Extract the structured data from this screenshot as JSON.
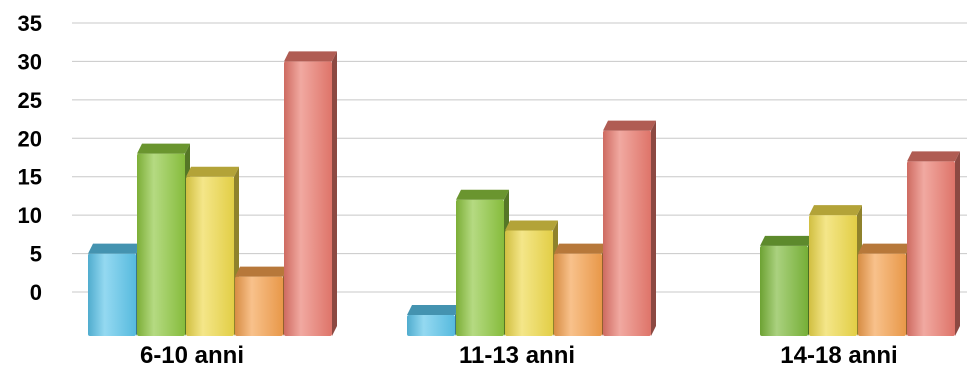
{
  "chart_data": {
    "type": "bar",
    "title": "",
    "xlabel": "",
    "ylabel": "",
    "categories": [
      "6-10 anni",
      "11-13 anni",
      "14-18 anni"
    ],
    "yticks": [
      "35",
      "30",
      "25",
      "20",
      "15",
      "10",
      "5",
      "0"
    ],
    "ylim": [
      0,
      35
    ],
    "grid": true,
    "legend": "none",
    "bars": [
      [
        {
          "value": 5,
          "color": "#5bc4ea"
        },
        {
          "value": 18,
          "color": "#8dc63f"
        },
        {
          "value": 15,
          "color": "#eed94a"
        },
        {
          "value": 2,
          "color": "#f4a04d"
        },
        {
          "value": 30,
          "color": "#ea7a6e"
        }
      ],
      [
        {
          "value": -3,
          "color": "#5bc4ea"
        },
        {
          "value": 12,
          "color": "#8dc63f"
        },
        {
          "value": 8,
          "color": "#eed94a"
        },
        {
          "value": 5,
          "color": "#f4a04d"
        },
        {
          "value": 21,
          "color": "#ea7a6e"
        }
      ],
      [
        {
          "value": 6,
          "color": "#7cb83a"
        },
        {
          "value": 10,
          "color": "#eed94a"
        },
        {
          "value": 5,
          "color": "#f4a04d"
        },
        {
          "value": 17,
          "color": "#ea7a6e"
        }
      ]
    ]
  }
}
